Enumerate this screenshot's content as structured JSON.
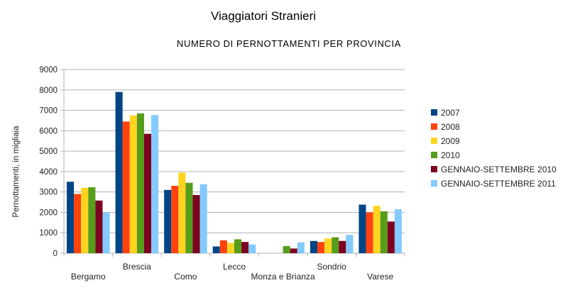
{
  "chart_data": {
    "type": "bar",
    "title": "Viaggiatori Stranieri",
    "subtitle": "NUMERO DI PERNOTTAMENTI PER PROVINCIA",
    "xlabel": "",
    "ylabel": "Pernottamenti, in migliaia",
    "ylim": [
      0,
      9000
    ],
    "yticks": [
      0,
      1000,
      2000,
      3000,
      4000,
      5000,
      6000,
      7000,
      8000,
      9000
    ],
    "grid": true,
    "legend_position": "right",
    "categories": [
      "Bergamo",
      "Brescia",
      "Como",
      "Lecco",
      "Monza e Brianza",
      "Sondrio",
      "Varese"
    ],
    "series": [
      {
        "name": "2007",
        "color": "#004586",
        "values": [
          3500,
          7900,
          3100,
          330,
          null,
          600,
          2380
        ]
      },
      {
        "name": "2008",
        "color": "#ff420e",
        "values": [
          2900,
          6450,
          3300,
          630,
          null,
          550,
          2000
        ]
      },
      {
        "name": "2009",
        "color": "#ffd320",
        "values": [
          3200,
          6750,
          3950,
          500,
          null,
          720,
          2320
        ]
      },
      {
        "name": "2010",
        "color": "#579d1c",
        "values": [
          3230,
          6850,
          3450,
          680,
          350,
          780,
          2050
        ]
      },
      {
        "name": "GENNAIO-SETTEMBRE 2010",
        "color": "#7e0021",
        "values": [
          2580,
          5850,
          2850,
          550,
          230,
          600,
          1550
        ]
      },
      {
        "name": "GENNAIO-SETTEMBRE 2011",
        "color": "#83caff",
        "values": [
          2000,
          6770,
          3380,
          430,
          530,
          900,
          2150
        ]
      }
    ]
  }
}
